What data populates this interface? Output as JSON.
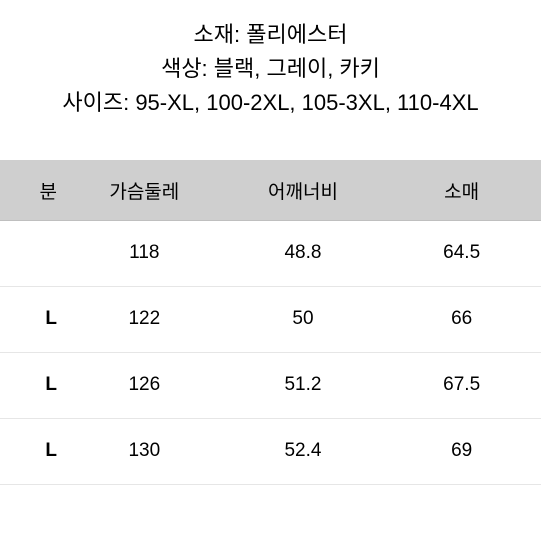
{
  "info": {
    "material": "소재: 폴리에스터",
    "colors": "색상: 블랙, 그레이, 카키",
    "sizes": "사이즈: 95-XL, 100-2XL, 105-3XL, 110-4XL"
  },
  "table": {
    "header_bg": "#cfcfcf",
    "row_border": "#e6e6e6",
    "font_size_header": 19,
    "font_size_cell": 19,
    "columns": [
      "분",
      "가슴둘레",
      "어깨너비",
      "소매"
    ],
    "rows": [
      [
        "",
        "118",
        "48.8",
        "64.5"
      ],
      [
        "L",
        "122",
        "50",
        "66"
      ],
      [
        "L",
        "126",
        "51.2",
        "67.5"
      ],
      [
        "L",
        "130",
        "52.4",
        "69"
      ]
    ]
  }
}
